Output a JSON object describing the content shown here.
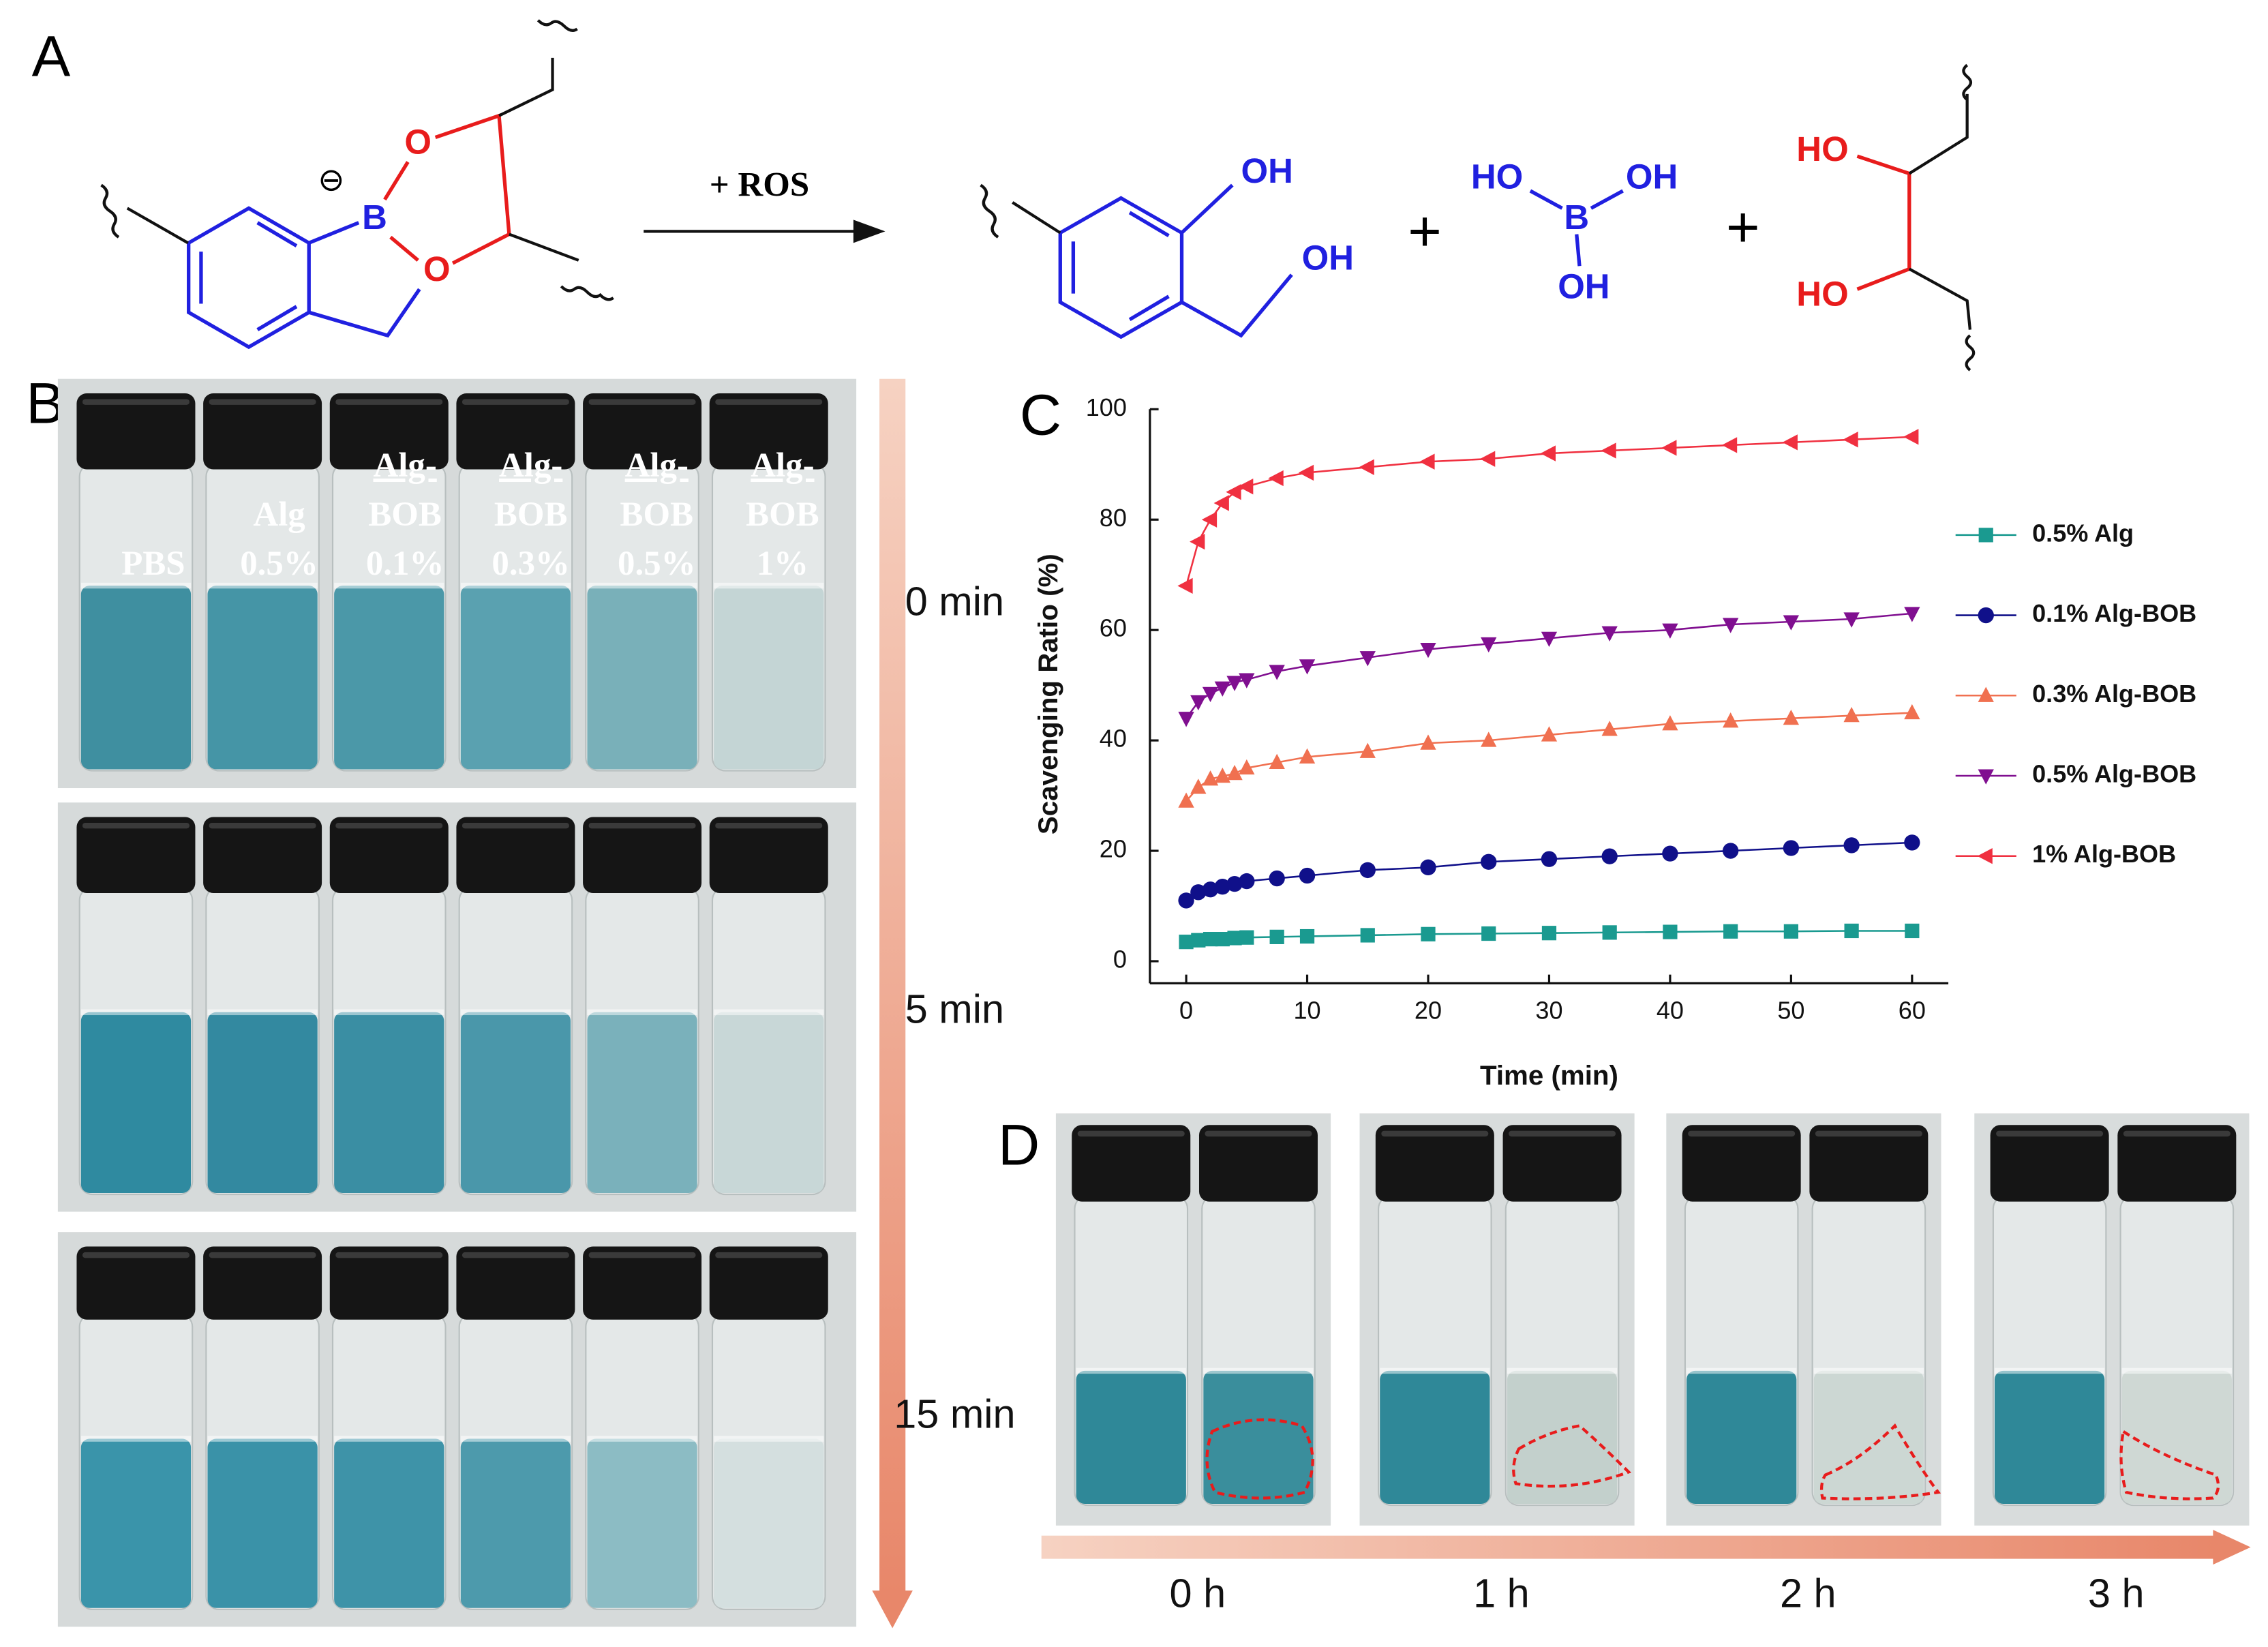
{
  "panel_a": {
    "label": "A",
    "reagent": "+ ROS",
    "charge": "⊖",
    "reactant_atoms": [
      "O",
      "B",
      "O"
    ],
    "product_hydroxyls": [
      "OH",
      "OH"
    ],
    "plus_signs": [
      "+",
      "+"
    ],
    "boric_acid": [
      "HO",
      "B",
      "OH",
      "OH"
    ],
    "diol": [
      "HO",
      "HO"
    ]
  },
  "panel_b": {
    "label": "B",
    "vial_labels": [
      [
        "PBS"
      ],
      [
        "Alg",
        "0.5%"
      ],
      [
        "Alg-",
        "BOB",
        "0.1%"
      ],
      [
        "Alg-",
        "BOB",
        "0.3%"
      ],
      [
        "Alg-",
        "BOB",
        "0.5%"
      ],
      [
        "Alg-",
        "BOB",
        "1%"
      ]
    ],
    "times": [
      "0 min",
      "5 min",
      "15 min"
    ]
  },
  "chart_data": {
    "type": "scatter",
    "panel_label": "C",
    "x_label": "Time (min)",
    "y_label": "Scavenging Ratio (%)",
    "x": [
      0,
      1,
      2,
      3,
      4,
      5,
      7.5,
      10,
      15,
      20,
      25,
      30,
      35,
      40,
      45,
      50,
      55,
      60
    ],
    "xlim": [
      -3,
      63
    ],
    "ylim": [
      -4,
      100
    ],
    "xticks": [
      0,
      10,
      20,
      30,
      40,
      50,
      60
    ],
    "yticks": [
      0,
      20,
      40,
      60,
      80,
      100
    ],
    "grid": false,
    "series": [
      {
        "name": "0.5% Alg",
        "color": "#1a9a90",
        "marker": "square",
        "values": [
          3.5,
          3.8,
          4,
          4,
          4.2,
          4.3,
          4.4,
          4.5,
          4.7,
          4.9,
          5,
          5.1,
          5.2,
          5.3,
          5.4,
          5.4,
          5.5,
          5.5
        ]
      },
      {
        "name": "0.1% Alg-BOB",
        "color": "#10108a",
        "marker": "circle",
        "values": [
          11,
          12.5,
          13,
          13.5,
          14,
          14.5,
          15,
          15.5,
          16.5,
          17,
          18,
          18.5,
          19,
          19.5,
          20,
          20.5,
          21,
          21.5
        ]
      },
      {
        "name": "0.3% Alg-BOB",
        "color": "#f07050",
        "marker": "triangle-up",
        "values": [
          29,
          31.5,
          33,
          33.5,
          34,
          35,
          36,
          37,
          38,
          39.5,
          40,
          41,
          42,
          43,
          43.5,
          44,
          44.5,
          45
        ]
      },
      {
        "name": "0.5% Alg-BOB",
        "color": "#800f90",
        "marker": "triangle-down",
        "values": [
          44,
          47,
          48.5,
          49.5,
          50.5,
          51,
          52.5,
          53.5,
          55,
          56.5,
          57.5,
          58.5,
          59.5,
          60,
          61,
          61.5,
          62,
          63
        ]
      },
      {
        "name": "1% Alg-BOB",
        "color": "#f03040",
        "marker": "triangle-left",
        "values": [
          68,
          76,
          80,
          83,
          85,
          86,
          87.5,
          88.5,
          89.5,
          90.5,
          91,
          92,
          92.5,
          93,
          93.5,
          94,
          94.5,
          95
        ]
      }
    ]
  },
  "panel_d": {
    "label": "D",
    "times": [
      "0 h",
      "1 h",
      "2 h",
      "3 h"
    ]
  }
}
